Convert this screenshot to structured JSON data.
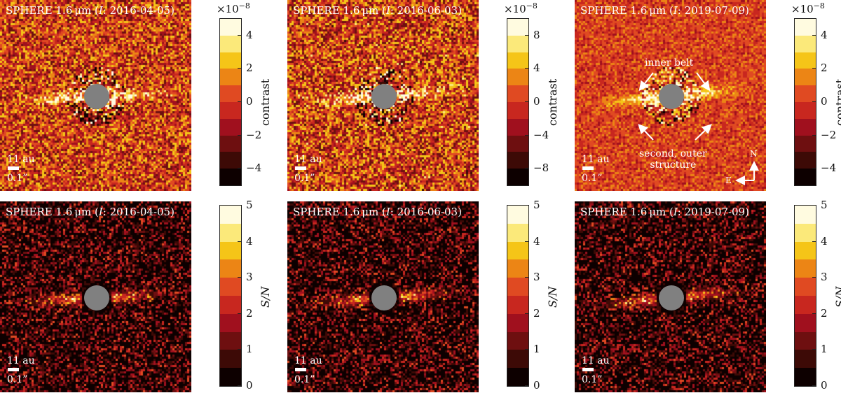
{
  "columns": [
    {
      "title": "SPHERE 1.6 μm (I: 2016-04-05)",
      "contrast_colorbar": {
        "exponent": "×10−8",
        "label": "contrast",
        "ticks": [
          "4",
          "2",
          "0",
          "−2",
          "−4"
        ],
        "min": -5,
        "max": 5
      },
      "snr_colorbar": {
        "label": "S/N",
        "ticks": [
          "5",
          "4",
          "3",
          "2",
          "1",
          "0"
        ],
        "min": 0,
        "max": 5
      }
    },
    {
      "title": "SPHERE 1.6 μm (I: 2016-06-03)",
      "contrast_colorbar": {
        "exponent": "×10−8",
        "label": "contrast",
        "ticks": [
          "8",
          "4",
          "0",
          "−4",
          "−8"
        ],
        "min": -10,
        "max": 10
      },
      "snr_colorbar": {
        "label": "S/N",
        "ticks": [
          "5",
          "4",
          "3",
          "2",
          "1",
          "0"
        ],
        "min": 0,
        "max": 5
      }
    },
    {
      "title": "SPHERE 1.6 μm (I: 2019-07-09)",
      "contrast_colorbar": {
        "exponent": "×10−8",
        "label": "contrast",
        "ticks": [
          "4",
          "2",
          "0",
          "−2",
          "−4"
        ],
        "min": -5,
        "max": 5
      },
      "snr_colorbar": {
        "label": "S/N",
        "ticks": [
          "5",
          "4",
          "3",
          "2",
          "1",
          "0"
        ],
        "min": 0,
        "max": 5
      }
    }
  ],
  "scale_bar": {
    "distance": "11 au",
    "angle": "0.1”"
  },
  "annotations": {
    "inner_belt": "inner belt",
    "outer_structure_line1": "second, outer",
    "outer_structure_line2": "structure",
    "north": "N",
    "east": "E"
  },
  "colors": {
    "cmap": [
      "#0d0000",
      "#3d0a06",
      "#6e0f10",
      "#a0101e",
      "#c8271f",
      "#e04a22",
      "#ec8515",
      "#f5c518",
      "#fbe97a",
      "#fffbe0"
    ],
    "mask": "#808080"
  }
}
